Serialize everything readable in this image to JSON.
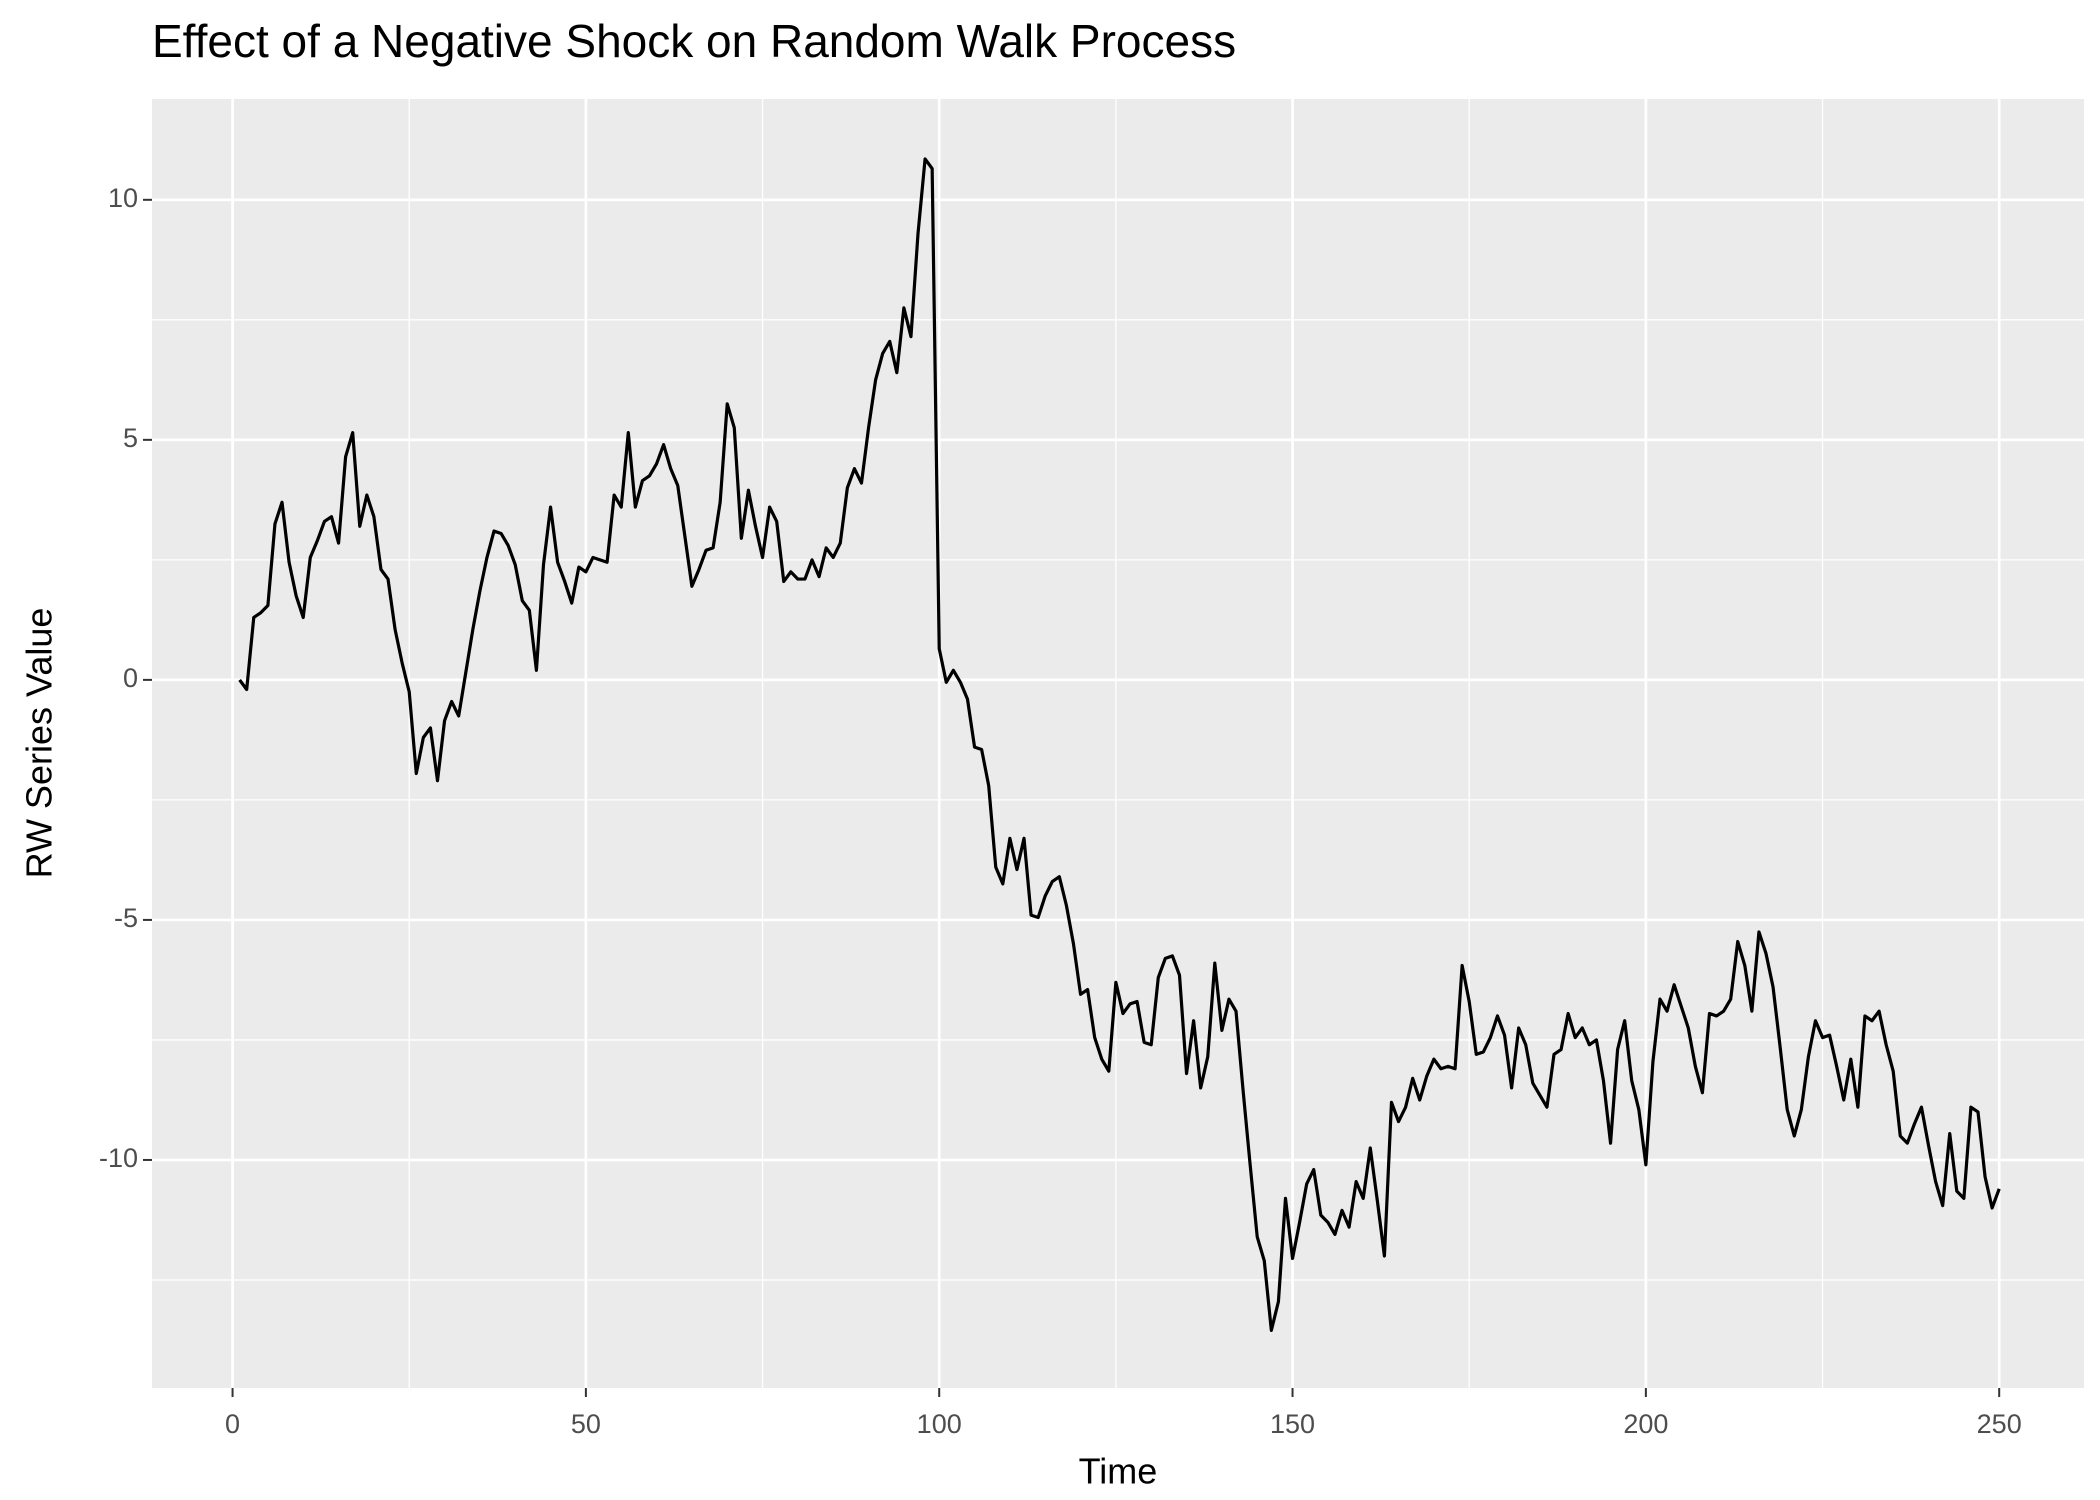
{
  "chart_data": {
    "type": "line",
    "title": "Effect of a Negative Shock on Random Walk Process",
    "x_label": "Time",
    "y_label": "RW Series Value",
    "color": "#000000",
    "grid": true,
    "xlim": [
      -11.4,
      262
    ],
    "ylim": [
      -14.75,
      12.1
    ],
    "xticks": [
      0,
      50,
      100,
      150,
      200,
      250
    ],
    "yticks": [
      -10,
      -5,
      0,
      5,
      10
    ],
    "x": [
      1,
      2,
      3,
      4,
      5,
      6,
      7,
      8,
      9,
      10,
      11,
      12,
      13,
      14,
      15,
      16,
      17,
      18,
      19,
      20,
      21,
      22,
      23,
      24,
      25,
      26,
      27,
      28,
      29,
      30,
      31,
      32,
      33,
      34,
      35,
      36,
      37,
      38,
      39,
      40,
      41,
      42,
      43,
      44,
      45,
      46,
      47,
      48,
      49,
      50,
      51,
      52,
      53,
      54,
      55,
      56,
      57,
      58,
      59,
      60,
      61,
      62,
      63,
      64,
      65,
      66,
      67,
      68,
      69,
      70,
      71,
      72,
      73,
      74,
      75,
      76,
      77,
      78,
      79,
      80,
      81,
      82,
      83,
      84,
      85,
      86,
      87,
      88,
      89,
      90,
      91,
      92,
      93,
      94,
      95,
      96,
      97,
      98,
      99,
      100,
      101,
      102,
      103,
      104,
      105,
      106,
      107,
      108,
      109,
      110,
      111,
      112,
      113,
      114,
      115,
      116,
      117,
      118,
      119,
      120,
      121,
      122,
      123,
      124,
      125,
      126,
      127,
      128,
      129,
      130,
      131,
      132,
      133,
      134,
      135,
      136,
      137,
      138,
      139,
      140,
      141,
      142,
      143,
      144,
      145,
      146,
      147,
      148,
      149,
      150,
      151,
      152,
      153,
      154,
      155,
      156,
      157,
      158,
      159,
      160,
      161,
      162,
      163,
      164,
      165,
      166,
      167,
      168,
      169,
      170,
      171,
      172,
      173,
      174,
      175,
      176,
      177,
      178,
      179,
      180,
      181,
      182,
      183,
      184,
      185,
      186,
      187,
      188,
      189,
      190,
      191,
      192,
      193,
      194,
      195,
      196,
      197,
      198,
      199,
      200,
      201,
      202,
      203,
      204,
      205,
      206,
      207,
      208,
      209,
      210,
      211,
      212,
      213,
      214,
      215,
      216,
      217,
      218,
      219,
      220,
      221,
      222,
      223,
      224,
      225,
      226,
      227,
      228,
      229,
      230,
      231,
      232,
      233,
      234,
      235,
      236,
      237,
      238,
      239,
      240,
      241,
      242,
      243,
      244,
      245,
      246,
      247,
      248,
      249,
      250
    ],
    "values": [
      0.0,
      -0.2,
      1.3,
      1.4,
      1.55,
      3.25,
      3.7,
      2.45,
      1.75,
      1.3,
      2.55,
      2.9,
      3.3,
      3.4,
      2.85,
      4.65,
      5.15,
      3.2,
      3.85,
      3.4,
      2.3,
      2.1,
      1.05,
      0.35,
      -0.25,
      -1.95,
      -1.2,
      -1.0,
      -2.1,
      -0.85,
      -0.45,
      -0.75,
      0.15,
      1.05,
      1.85,
      2.55,
      3.1,
      3.05,
      2.8,
      2.4,
      1.65,
      1.45,
      0.2,
      2.4,
      3.6,
      2.45,
      2.05,
      1.6,
      2.35,
      2.25,
      2.55,
      2.5,
      2.45,
      3.85,
      3.6,
      5.15,
      3.6,
      4.15,
      4.25,
      4.5,
      4.9,
      4.4,
      4.05,
      3.0,
      1.95,
      2.3,
      2.7,
      2.75,
      3.7,
      5.75,
      5.25,
      2.95,
      3.95,
      3.2,
      2.55,
      3.6,
      3.3,
      2.05,
      2.25,
      2.1,
      2.1,
      2.5,
      2.15,
      2.75,
      2.55,
      2.85,
      4.0,
      4.4,
      4.1,
      5.25,
      6.25,
      6.8,
      7.05,
      6.4,
      7.75,
      7.15,
      9.3,
      10.85,
      10.65,
      0.65,
      -0.05,
      0.2,
      -0.05,
      -0.4,
      -1.4,
      -1.45,
      -2.2,
      -3.9,
      -4.25,
      -3.3,
      -3.95,
      -3.3,
      -4.9,
      -4.95,
      -4.5,
      -4.2,
      -4.1,
      -4.7,
      -5.5,
      -6.55,
      -6.45,
      -7.45,
      -7.9,
      -8.15,
      -6.3,
      -6.95,
      -6.75,
      -6.7,
      -7.55,
      -7.6,
      -6.2,
      -5.8,
      -5.75,
      -6.15,
      -8.2,
      -7.1,
      -8.5,
      -7.85,
      -5.9,
      -7.3,
      -6.65,
      -6.9,
      -8.55,
      -10.1,
      -11.6,
      -12.1,
      -13.55,
      -12.95,
      -10.8,
      -12.05,
      -11.3,
      -10.5,
      -10.2,
      -11.15,
      -11.3,
      -11.55,
      -11.05,
      -11.4,
      -10.45,
      -10.8,
      -9.75,
      -10.85,
      -12.0,
      -8.8,
      -9.2,
      -8.9,
      -8.3,
      -8.75,
      -8.25,
      -7.9,
      -8.1,
      -8.05,
      -8.1,
      -5.95,
      -6.7,
      -7.8,
      -7.75,
      -7.45,
      -7.0,
      -7.4,
      -8.5,
      -7.25,
      -7.6,
      -8.4,
      -8.65,
      -8.9,
      -7.8,
      -7.7,
      -6.95,
      -7.45,
      -7.25,
      -7.6,
      -7.5,
      -8.35,
      -9.65,
      -7.7,
      -7.1,
      -8.35,
      -8.95,
      -10.1,
      -7.95,
      -6.65,
      -6.9,
      -6.35,
      -6.8,
      -7.25,
      -8.05,
      -8.6,
      -6.95,
      -7.0,
      -6.9,
      -6.65,
      -5.45,
      -5.95,
      -6.9,
      -5.25,
      -5.7,
      -6.4,
      -7.65,
      -8.95,
      -9.5,
      -8.95,
      -7.85,
      -7.1,
      -7.45,
      -7.4,
      -8.05,
      -8.75,
      -7.9,
      -8.9,
      -7.0,
      -7.1,
      -6.9,
      -7.6,
      -8.15,
      -9.5,
      -9.65,
      -9.25,
      -8.9,
      -9.7,
      -10.45,
      -10.95,
      -9.45,
      -10.65,
      -10.8,
      -8.9,
      -9.0,
      -10.35,
      -11.0,
      -10.6
    ]
  }
}
